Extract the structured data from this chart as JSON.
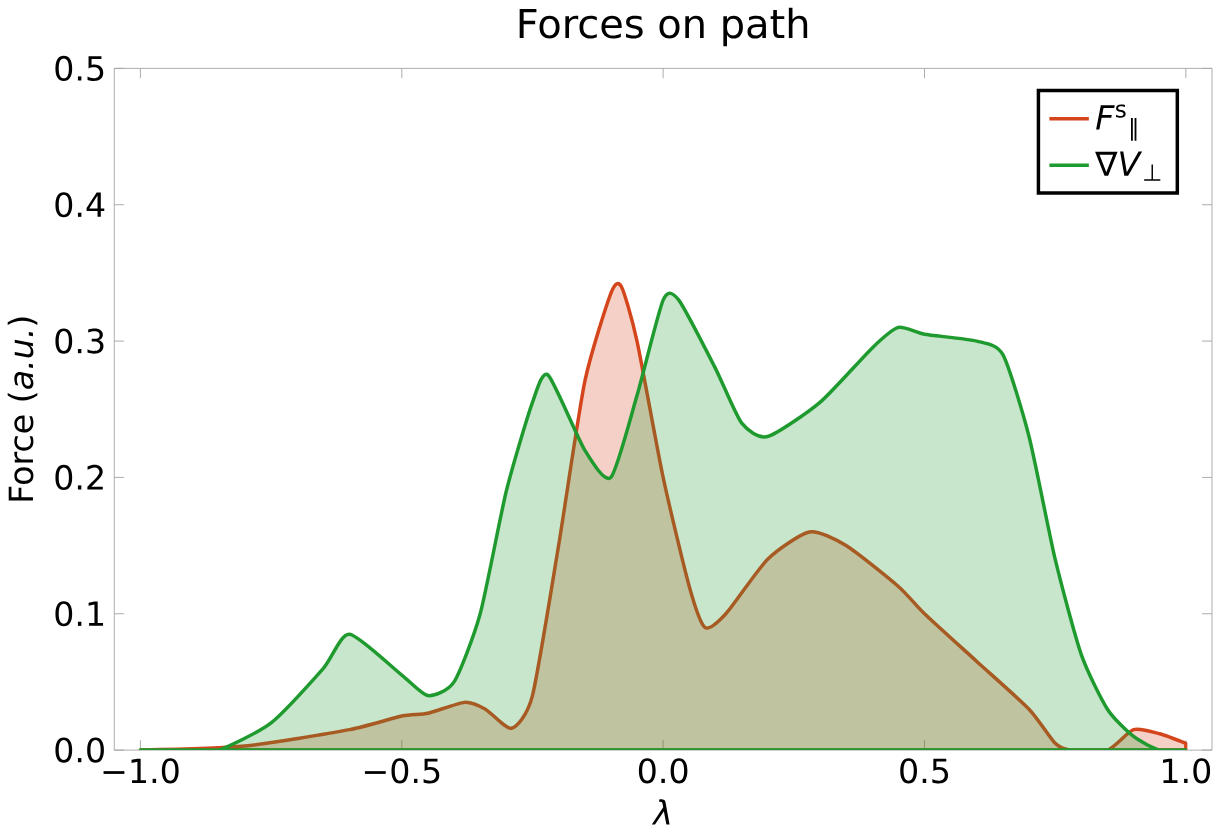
{
  "chart_data": {
    "type": "area",
    "title": "Forces on path",
    "xlabel": "*λ*",
    "ylabel": "Force (*a.u.*)",
    "xlim": [
      -1.05,
      1.05
    ],
    "ylim": [
      0,
      0.5
    ],
    "xticks": [
      {
        "value": -1.0,
        "label": "−1.0"
      },
      {
        "value": -0.5,
        "label": "−0.5"
      },
      {
        "value": 0.0,
        "label": "0.0"
      },
      {
        "value": 0.5,
        "label": "0.5"
      },
      {
        "value": 1.0,
        "label": "1.0"
      }
    ],
    "yticks": [
      {
        "value": 0,
        "label": "0.0"
      },
      {
        "value": 0.1,
        "label": "0.1"
      },
      {
        "value": 0.2,
        "label": "0.2"
      },
      {
        "value": 0.3,
        "label": "0.3"
      },
      {
        "value": 0.4,
        "label": "0.4"
      },
      {
        "value": 0.5,
        "label": "0.5"
      }
    ],
    "legend": "top right",
    "grid": false,
    "series": [
      {
        "name": "*F*$^{s}$$_{∥}$",
        "color": "#d4451c",
        "x": [
          -1.0,
          -0.8,
          -0.6,
          -0.5,
          -0.45,
          -0.38,
          -0.34,
          -0.29,
          -0.25,
          -0.2,
          -0.15,
          -0.1,
          -0.08,
          -0.05,
          0.0,
          0.05,
          0.08,
          0.12,
          0.2,
          0.28,
          0.35,
          0.45,
          0.5,
          0.6,
          0.7,
          0.75,
          0.78,
          0.85,
          0.9,
          0.95,
          1.0
        ],
        "values": [
          0.0,
          0.003,
          0.015,
          0.025,
          0.027,
          0.035,
          0.03,
          0.016,
          0.04,
          0.15,
          0.27,
          0.335,
          0.34,
          0.3,
          0.2,
          0.12,
          0.09,
          0.1,
          0.14,
          0.16,
          0.15,
          0.12,
          0.1,
          0.065,
          0.03,
          0.005,
          0.0,
          0.0,
          0.015,
          0.012,
          0.005
        ]
      },
      {
        "name": "∇*V*$_{⊥}$",
        "color": "#1f9a2f",
        "x": [
          -1.0,
          -0.9,
          -0.85,
          -0.75,
          -0.65,
          -0.6,
          -0.5,
          -0.45,
          -0.4,
          -0.35,
          -0.3,
          -0.25,
          -0.22,
          -0.15,
          -0.1,
          -0.05,
          0.0,
          0.03,
          0.1,
          0.15,
          0.2,
          0.3,
          0.4,
          0.45,
          0.5,
          0.6,
          0.65,
          0.7,
          0.75,
          0.8,
          0.85,
          0.9,
          0.95,
          1.0
        ],
        "values": [
          0.0,
          0.0,
          0.0,
          0.02,
          0.06,
          0.085,
          0.055,
          0.04,
          0.05,
          0.1,
          0.19,
          0.255,
          0.275,
          0.22,
          0.2,
          0.26,
          0.33,
          0.33,
          0.28,
          0.24,
          0.23,
          0.255,
          0.295,
          0.31,
          0.305,
          0.3,
          0.29,
          0.23,
          0.14,
          0.07,
          0.03,
          0.01,
          0.0,
          0.0
        ]
      }
    ]
  }
}
